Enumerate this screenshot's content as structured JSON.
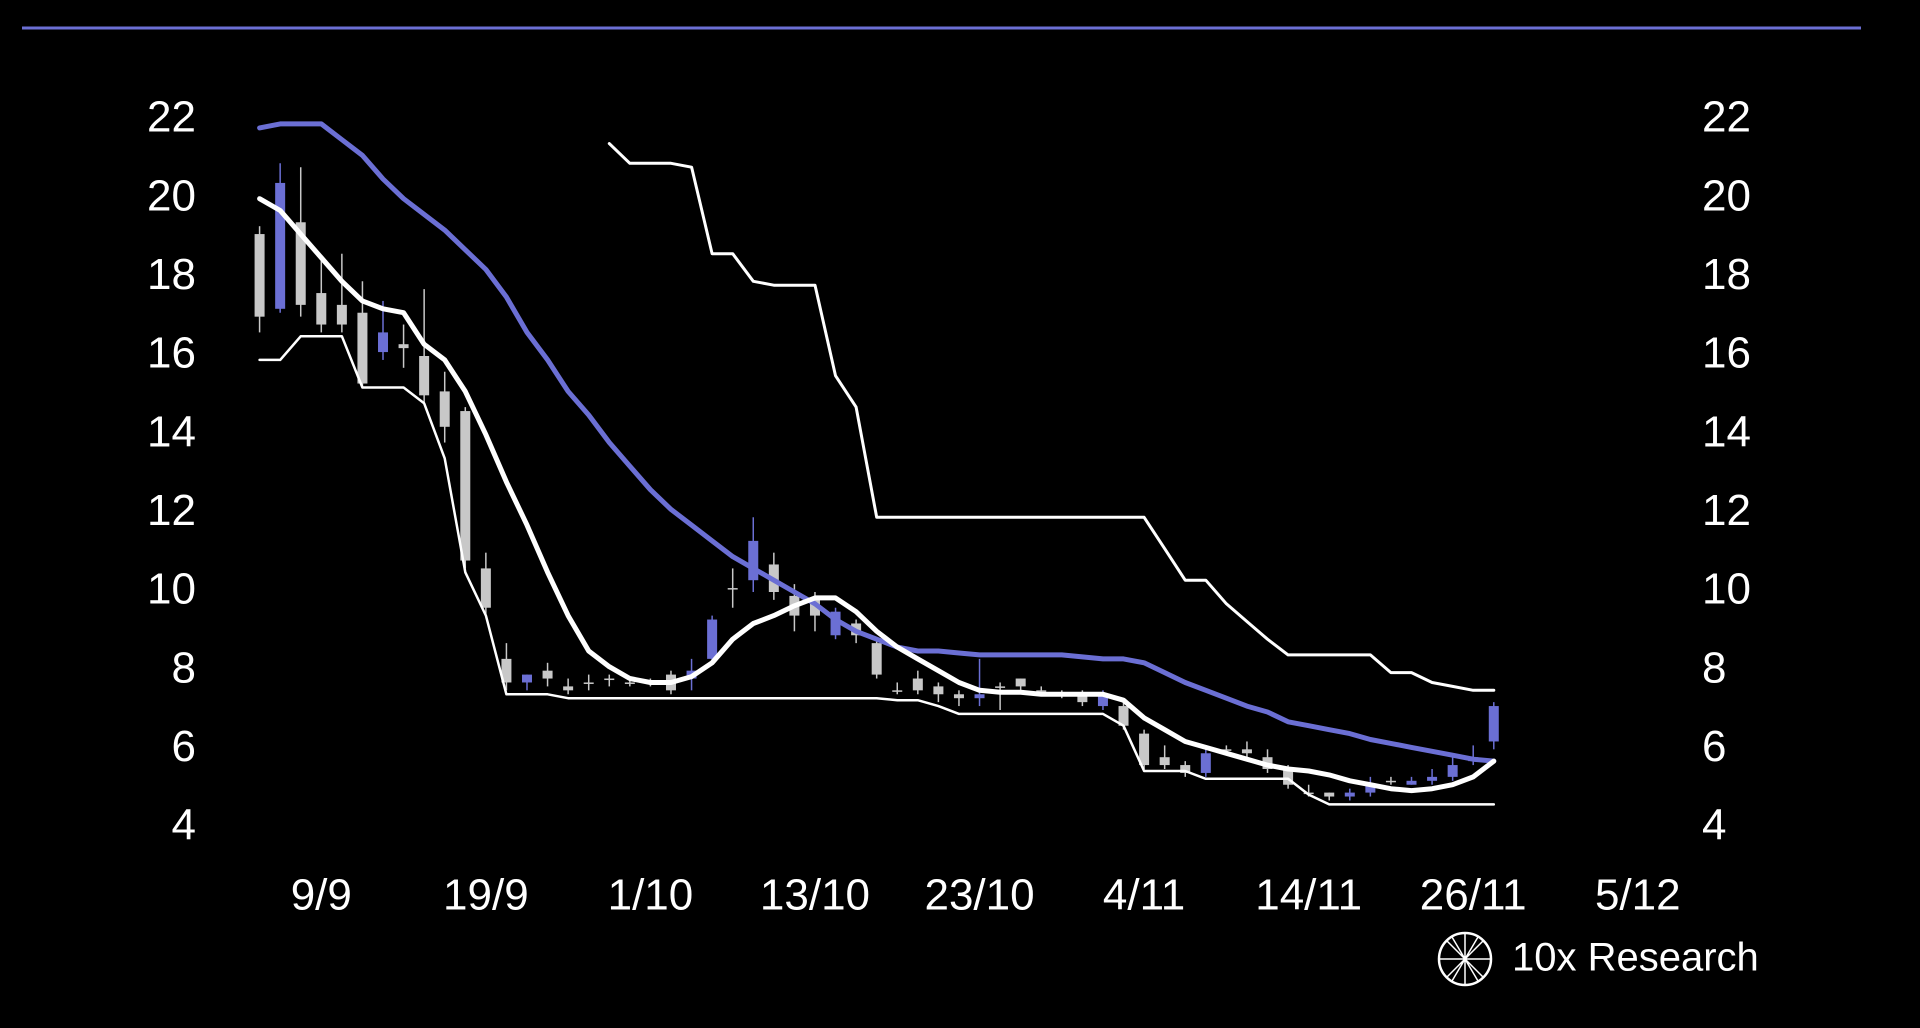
{
  "chart_data": {
    "type": "candlestick",
    "categories": [
      null,
      null,
      null,
      "9/9",
      null,
      null,
      null,
      null,
      null,
      null,
      null,
      "19/9",
      null,
      null,
      null,
      null,
      null,
      null,
      null,
      "1/10",
      null,
      null,
      null,
      null,
      null,
      null,
      null,
      "13/10",
      null,
      null,
      null,
      null,
      null,
      null,
      null,
      "23/10",
      null,
      null,
      null,
      null,
      null,
      null,
      null,
      "4/11",
      null,
      null,
      null,
      null,
      null,
      null,
      null,
      "14/11",
      null,
      null,
      null,
      null,
      null,
      null,
      null,
      "26/11",
      null,
      null,
      null,
      null,
      null,
      null,
      null,
      "5/12"
    ],
    "open": [
      19.1,
      17.2,
      19.4,
      17.6,
      17.3,
      17.1,
      16.1,
      16.3,
      16.0,
      15.1,
      14.6,
      10.6,
      8.3,
      7.7,
      8.0,
      7.6,
      7.7,
      7.8,
      7.7,
      7.7,
      7.9,
      7.8,
      8.3,
      10.1,
      10.3,
      10.7,
      9.9,
      9.8,
      8.9,
      9.2,
      8.7,
      7.5,
      7.8,
      7.6,
      7.4,
      7.3,
      7.6,
      7.8,
      7.5,
      7.4,
      7.4,
      7.1,
      7.1,
      6.4,
      5.8,
      5.6,
      5.4,
      6.0,
      6.0,
      5.8,
      5.5,
      4.9,
      4.9,
      4.8,
      4.9,
      5.2,
      5.1,
      5.2,
      5.3,
      5.7,
      6.2,
      null,
      null,
      null,
      null,
      null,
      null,
      null
    ],
    "high": [
      19.3,
      20.9,
      20.8,
      18.5,
      18.6,
      17.9,
      17.4,
      16.8,
      17.7,
      15.6,
      14.7,
      11.0,
      8.7,
      7.9,
      8.2,
      7.8,
      7.9,
      7.9,
      7.8,
      7.8,
      8.0,
      8.3,
      9.4,
      10.6,
      11.9,
      11.0,
      10.2,
      10.0,
      9.6,
      9.3,
      8.8,
      7.7,
      8.0,
      7.7,
      7.5,
      8.3,
      7.7,
      7.8,
      7.6,
      7.5,
      7.5,
      7.5,
      7.2,
      6.5,
      6.1,
      5.7,
      6.0,
      6.1,
      6.2,
      6.0,
      5.6,
      5.1,
      4.9,
      5.0,
      5.3,
      5.3,
      5.3,
      5.5,
      5.8,
      6.1,
      7.2,
      null,
      null,
      null,
      null,
      null,
      null,
      null
    ],
    "low": [
      16.6,
      17.1,
      17.0,
      16.6,
      16.6,
      15.2,
      15.9,
      15.7,
      14.8,
      13.8,
      10.6,
      9.4,
      7.5,
      7.5,
      7.6,
      7.4,
      7.5,
      7.6,
      7.6,
      7.6,
      7.4,
      7.5,
      8.2,
      9.6,
      10.0,
      9.8,
      9.0,
      9.0,
      8.8,
      8.7,
      7.8,
      7.4,
      7.4,
      7.2,
      7.1,
      7.1,
      7.0,
      7.4,
      7.4,
      7.3,
      7.1,
      7.0,
      6.5,
      5.5,
      5.5,
      5.3,
      5.3,
      5.9,
      5.8,
      5.4,
      5.0,
      4.8,
      4.7,
      4.7,
      4.8,
      5.1,
      5.1,
      5.1,
      5.2,
      5.6,
      6.0,
      null,
      null,
      null,
      null,
      null,
      null,
      null
    ],
    "close": [
      17.0,
      20.4,
      17.3,
      16.8,
      16.8,
      15.3,
      16.6,
      16.2,
      15.0,
      14.2,
      10.8,
      9.6,
      7.7,
      7.9,
      7.8,
      7.5,
      7.7,
      7.8,
      7.7,
      7.7,
      7.5,
      8.0,
      9.3,
      10.1,
      11.3,
      10.0,
      9.4,
      9.4,
      9.5,
      8.9,
      7.9,
      7.5,
      7.5,
      7.4,
      7.3,
      7.4,
      7.6,
      7.6,
      7.5,
      7.4,
      7.2,
      7.4,
      6.6,
      5.6,
      5.6,
      5.4,
      5.9,
      6.0,
      5.9,
      5.5,
      5.1,
      4.9,
      4.8,
      4.9,
      5.1,
      5.2,
      5.2,
      5.3,
      5.6,
      5.8,
      7.1,
      null,
      null,
      null,
      null,
      null,
      null,
      null
    ],
    "up_color": "#6b6fd4",
    "down_color": "#c8c8c8",
    "series": [
      {
        "color": "#6b6fd4",
        "line_width": 5,
        "values": [
          21.8,
          21.9,
          21.9,
          21.9,
          21.5,
          21.1,
          20.5,
          20.0,
          19.6,
          19.2,
          18.7,
          18.2,
          17.5,
          16.6,
          15.9,
          15.1,
          14.5,
          13.8,
          13.2,
          12.6,
          12.1,
          11.7,
          11.3,
          10.9,
          10.6,
          10.3,
          10.0,
          9.7,
          9.3,
          9.0,
          8.8,
          8.6,
          8.5,
          8.5,
          8.45,
          8.4,
          8.4,
          8.4,
          8.4,
          8.4,
          8.35,
          8.3,
          8.3,
          8.2,
          7.95,
          7.7,
          7.5,
          7.3,
          7.1,
          6.95,
          6.7,
          6.6,
          6.5,
          6.4,
          6.25,
          6.15,
          6.05,
          5.95,
          5.85,
          5.75,
          5.7,
          null,
          null,
          null,
          null,
          null,
          null,
          null
        ]
      },
      {
        "color": "#ffffff",
        "line_width": 5,
        "values": [
          20.0,
          19.7,
          19.1,
          18.5,
          17.9,
          17.4,
          17.2,
          17.1,
          16.3,
          15.9,
          15.1,
          14.0,
          12.8,
          11.7,
          10.5,
          9.4,
          8.5,
          8.1,
          7.8,
          7.7,
          7.7,
          7.85,
          8.2,
          8.8,
          9.2,
          9.4,
          9.65,
          9.85,
          9.85,
          9.5,
          9.0,
          8.6,
          8.3,
          8.0,
          7.7,
          7.5,
          7.45,
          7.45,
          7.4,
          7.4,
          7.4,
          7.4,
          7.25,
          6.8,
          6.5,
          6.2,
          6.05,
          5.9,
          5.75,
          5.6,
          5.5,
          5.45,
          5.35,
          5.2,
          5.1,
          5.0,
          4.95,
          5.0,
          5.1,
          5.3,
          5.7,
          null,
          null,
          null,
          null,
          null,
          null,
          null
        ]
      },
      {
        "color": "#ffffff",
        "line_width": 2.5,
        "values": [
          15.9,
          15.9,
          16.5,
          16.5,
          16.5,
          15.2,
          15.2,
          15.2,
          14.8,
          13.4,
          10.5,
          9.4,
          7.4,
          7.4,
          7.4,
          7.3,
          7.3,
          7.3,
          7.3,
          7.3,
          7.3,
          7.3,
          7.3,
          7.3,
          7.3,
          7.3,
          7.3,
          7.3,
          7.3,
          7.3,
          7.3,
          7.25,
          7.25,
          7.1,
          6.9,
          6.9,
          6.9,
          6.9,
          6.9,
          6.9,
          6.9,
          6.9,
          6.6,
          5.45,
          5.45,
          5.45,
          5.25,
          5.25,
          5.25,
          5.25,
          5.25,
          4.85,
          4.6,
          4.6,
          4.6,
          4.6,
          4.6,
          4.6,
          4.6,
          4.6,
          4.6,
          null,
          null,
          null,
          null,
          null,
          null,
          null
        ]
      },
      {
        "color": "#ffffff",
        "line_width": 3,
        "values": [
          null,
          null,
          null,
          null,
          null,
          null,
          null,
          null,
          null,
          null,
          null,
          null,
          null,
          null,
          null,
          null,
          null,
          21.4,
          20.9,
          20.9,
          20.9,
          20.8,
          18.6,
          18.6,
          17.9,
          17.8,
          17.8,
          17.8,
          15.5,
          14.7,
          11.9,
          11.9,
          11.9,
          11.9,
          11.9,
          11.9,
          11.9,
          11.9,
          11.9,
          11.9,
          11.9,
          11.9,
          11.9,
          11.9,
          11.1,
          10.3,
          10.3,
          9.7,
          9.25,
          8.8,
          8.4,
          8.4,
          8.4,
          8.4,
          8.4,
          7.95,
          7.95,
          7.7,
          7.6,
          7.5,
          7.5,
          null,
          null,
          null,
          null,
          null,
          null,
          null
        ]
      }
    ],
    "ylim": [
      4,
      22
    ],
    "yticks": [
      4,
      6,
      8,
      10,
      12,
      14,
      16,
      18,
      20,
      22
    ],
    "y2lim": [
      4,
      22
    ],
    "y2ticks": [
      4,
      6,
      8,
      10,
      12,
      14,
      16,
      18,
      20,
      22
    ]
  },
  "brand": "10x Research"
}
